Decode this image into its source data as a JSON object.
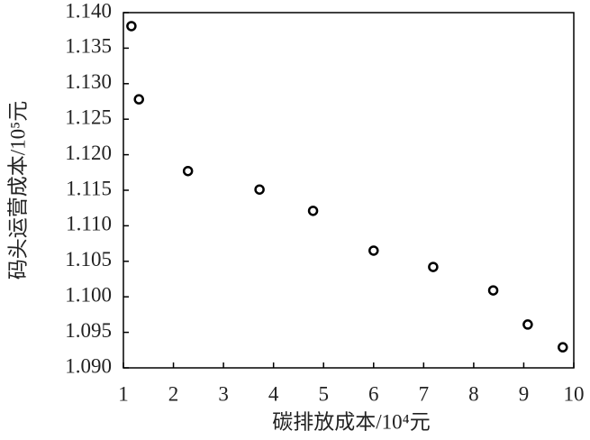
{
  "chart_data": {
    "type": "scatter",
    "x_label": "碳排放成本/10⁴元",
    "y_label": "码头运营成本/10⁵元",
    "series": [
      {
        "color": "#000000",
        "x": [
          1.16,
          1.31,
          2.29,
          3.72,
          4.79,
          6.0,
          7.19,
          8.39,
          9.08,
          9.78
        ],
        "values": [
          1.1381,
          1.1278,
          1.1177,
          1.1151,
          1.1121,
          1.1065,
          1.1042,
          1.1009,
          1.0961,
          1.0929
        ]
      }
    ],
    "xlim": [
      1,
      10
    ],
    "xticks": [
      1,
      2,
      3,
      4,
      5,
      6,
      7,
      8,
      9,
      10
    ],
    "ylim": [
      1.09,
      1.14
    ],
    "yticks": [
      {
        "value": 1.09,
        "label": "1.090"
      },
      1.095,
      {
        "value": 1.1,
        "label": "1.100"
      },
      1.105,
      {
        "value": 1.11,
        "label": "1.110"
      },
      1.115,
      {
        "value": 1.12,
        "label": "1.120"
      },
      1.125,
      {
        "value": 1.13,
        "label": "1.130"
      },
      1.135,
      {
        "value": 1.14,
        "label": "1.140"
      }
    ]
  }
}
